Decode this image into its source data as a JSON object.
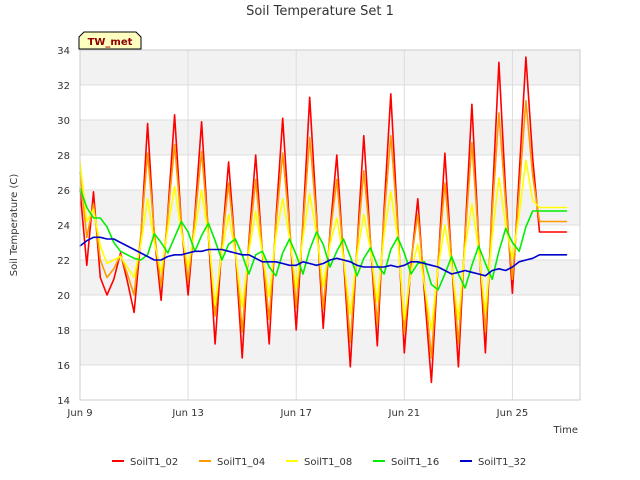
{
  "chart_data": {
    "type": "line",
    "title": "Soil Temperature Set 1",
    "xlabel": "Time",
    "ylabel": "Soil Temperature (C)",
    "site_label": "TW_met",
    "xlim": [
      9.0,
      27.5
    ],
    "ylim": [
      14,
      34
    ],
    "y_ticks": [
      14,
      16,
      18,
      20,
      22,
      24,
      26,
      28,
      30,
      32,
      34
    ],
    "x_ticks": [
      {
        "day": 9,
        "label": "Jun 9"
      },
      {
        "day": 13,
        "label": "Jun 13"
      },
      {
        "day": 17,
        "label": "Jun 17"
      },
      {
        "day": 21,
        "label": "Jun 21"
      },
      {
        "day": 25,
        "label": "Jun 25"
      }
    ],
    "grid": true,
    "background_bands": "alternating light gray",
    "legend_position": "bottom",
    "x_unit": "day of June 2-hourly",
    "series": [
      {
        "name": "SoilT1_02",
        "color": "#ff0000",
        "x": [
          9.0,
          9.25,
          9.5,
          9.75,
          10.0,
          10.25,
          10.5,
          10.75,
          11.0,
          11.25,
          11.5,
          11.75,
          12.0,
          12.25,
          12.5,
          12.75,
          13.0,
          13.25,
          13.5,
          13.75,
          14.0,
          14.25,
          14.5,
          14.75,
          15.0,
          15.25,
          15.5,
          15.75,
          16.0,
          16.25,
          16.5,
          16.75,
          17.0,
          17.25,
          17.5,
          17.75,
          18.0,
          18.25,
          18.5,
          18.75,
          19.0,
          19.25,
          19.5,
          19.75,
          20.0,
          20.25,
          20.5,
          20.75,
          21.0,
          21.25,
          21.5,
          21.75,
          22.0,
          22.25,
          22.5,
          22.75,
          23.0,
          23.25,
          23.5,
          23.75,
          24.0,
          24.25,
          24.5,
          24.75,
          25.0,
          25.25,
          25.5,
          25.75,
          26.0,
          26.25,
          26.5,
          26.75,
          27.0
        ],
        "y": [
          26.0,
          21.7,
          25.9,
          21.0,
          20.0,
          20.9,
          22.4,
          20.8,
          19.0,
          23.2,
          29.8,
          23.4,
          19.7,
          24.7,
          30.3,
          24.0,
          20.0,
          24.6,
          29.9,
          23.4,
          17.2,
          22.9,
          27.6,
          22.5,
          16.4,
          23.1,
          28.0,
          22.4,
          17.2,
          24.3,
          30.1,
          24.0,
          18.0,
          24.2,
          31.3,
          24.6,
          18.1,
          23.6,
          28.0,
          22.1,
          15.9,
          22.7,
          29.1,
          23.0,
          17.1,
          24.9,
          31.5,
          24.2,
          16.7,
          21.8,
          25.5,
          20.0,
          15.0,
          21.8,
          28.1,
          22.0,
          15.9,
          23.5,
          30.9,
          23.2,
          16.7,
          25.3,
          33.3,
          25.8,
          20.1,
          26.9,
          33.6,
          27.8,
          23.6,
          23.6,
          23.6,
          23.6,
          23.6
        ]
      },
      {
        "name": "SoilT1_04",
        "color": "#ff9900",
        "x": [
          9.0,
          9.25,
          9.5,
          9.75,
          10.0,
          10.25,
          10.5,
          10.75,
          11.0,
          11.25,
          11.5,
          11.75,
          12.0,
          12.25,
          12.5,
          12.75,
          13.0,
          13.25,
          13.5,
          13.75,
          14.0,
          14.25,
          14.5,
          14.75,
          15.0,
          15.25,
          15.5,
          15.75,
          16.0,
          16.25,
          16.5,
          16.75,
          17.0,
          17.25,
          17.5,
          17.75,
          18.0,
          18.25,
          18.5,
          18.75,
          19.0,
          19.25,
          19.5,
          19.75,
          20.0,
          20.25,
          20.5,
          20.75,
          21.0,
          21.25,
          21.5,
          21.75,
          22.0,
          22.25,
          22.5,
          22.75,
          23.0,
          23.25,
          23.5,
          23.75,
          24.0,
          24.25,
          24.5,
          24.75,
          25.0,
          25.25,
          25.5,
          25.75,
          26.0,
          26.25,
          26.5,
          26.75,
          27.0
        ],
        "y": [
          27.0,
          23.3,
          25.2,
          22.0,
          21.0,
          21.5,
          22.3,
          21.2,
          20.0,
          23.4,
          28.1,
          23.6,
          20.5,
          24.5,
          28.6,
          24.0,
          20.8,
          24.3,
          28.2,
          23.6,
          18.8,
          22.9,
          26.4,
          22.6,
          17.9,
          22.9,
          26.6,
          22.5,
          18.6,
          24.0,
          28.1,
          23.9,
          19.3,
          23.9,
          29.0,
          24.3,
          19.2,
          23.4,
          26.6,
          22.3,
          17.3,
          22.7,
          27.1,
          23.0,
          18.3,
          24.4,
          29.1,
          24.0,
          17.8,
          22.0,
          24.6,
          20.6,
          16.4,
          21.9,
          26.4,
          22.1,
          17.2,
          23.3,
          28.7,
          23.2,
          17.9,
          24.7,
          30.4,
          25.2,
          20.9,
          25.9,
          31.1,
          26.8,
          24.2,
          24.2,
          24.2,
          24.2,
          24.2
        ]
      },
      {
        "name": "SoilT1_08",
        "color": "#ffff00",
        "x": [
          9.0,
          9.25,
          9.5,
          9.75,
          10.0,
          10.25,
          10.5,
          10.75,
          11.0,
          11.25,
          11.5,
          11.75,
          12.0,
          12.25,
          12.5,
          12.75,
          13.0,
          13.25,
          13.5,
          13.75,
          14.0,
          14.25,
          14.5,
          14.75,
          15.0,
          15.25,
          15.5,
          15.75,
          16.0,
          16.25,
          16.5,
          16.75,
          17.0,
          17.25,
          17.5,
          17.75,
          18.0,
          18.25,
          18.5,
          18.75,
          19.0,
          19.25,
          19.5,
          19.75,
          20.0,
          20.25,
          20.5,
          20.75,
          21.0,
          21.25,
          21.5,
          21.75,
          22.0,
          22.25,
          22.5,
          22.75,
          23.0,
          23.25,
          23.5,
          23.75,
          24.0,
          24.25,
          24.5,
          24.75,
          25.0,
          25.25,
          25.5,
          25.75,
          26.0,
          26.25,
          26.5,
          26.75,
          27.0
        ],
        "y": [
          27.6,
          24.2,
          24.9,
          22.8,
          21.8,
          22.0,
          22.2,
          21.6,
          21.0,
          22.9,
          25.5,
          23.0,
          21.3,
          23.8,
          26.2,
          23.6,
          21.6,
          23.7,
          26.0,
          23.4,
          19.4,
          22.5,
          24.6,
          22.4,
          19.3,
          22.5,
          24.8,
          22.4,
          19.9,
          23.4,
          25.5,
          23.3,
          20.4,
          23.3,
          25.8,
          23.5,
          20.5,
          22.9,
          24.4,
          22.1,
          18.9,
          22.3,
          24.6,
          22.6,
          19.6,
          23.5,
          25.9,
          23.3,
          18.6,
          21.4,
          22.9,
          20.5,
          18.0,
          21.6,
          24.0,
          21.7,
          18.6,
          22.7,
          25.2,
          22.6,
          19.0,
          23.4,
          26.7,
          24.0,
          22.1,
          24.6,
          27.7,
          25.4,
          25.0,
          25.0,
          25.0,
          25.0,
          25.0
        ]
      },
      {
        "name": "SoilT1_16",
        "color": "#00ee00",
        "x": [
          9.0,
          9.25,
          9.5,
          9.75,
          10.0,
          10.25,
          10.5,
          10.75,
          11.0,
          11.25,
          11.5,
          11.75,
          12.0,
          12.25,
          12.5,
          12.75,
          13.0,
          13.25,
          13.5,
          13.75,
          14.0,
          14.25,
          14.5,
          14.75,
          15.0,
          15.25,
          15.5,
          15.75,
          16.0,
          16.25,
          16.5,
          16.75,
          17.0,
          17.25,
          17.5,
          17.75,
          18.0,
          18.25,
          18.5,
          18.75,
          19.0,
          19.25,
          19.5,
          19.75,
          20.0,
          20.25,
          20.5,
          20.75,
          21.0,
          21.25,
          21.5,
          21.75,
          22.0,
          22.25,
          22.5,
          22.75,
          23.0,
          23.25,
          23.5,
          23.75,
          24.0,
          24.25,
          24.5,
          24.75,
          25.0,
          25.25,
          25.5,
          25.75,
          26.0,
          26.25,
          26.5,
          26.75,
          27.0
        ],
        "y": [
          26.1,
          25.0,
          24.4,
          24.4,
          23.9,
          23.0,
          22.5,
          22.3,
          22.1,
          22.0,
          22.3,
          23.5,
          23.0,
          22.4,
          23.3,
          24.2,
          23.6,
          22.5,
          23.4,
          24.1,
          23.1,
          22.0,
          22.9,
          23.2,
          22.3,
          21.2,
          22.3,
          22.5,
          21.6,
          21.1,
          22.4,
          23.2,
          22.3,
          21.2,
          22.6,
          23.6,
          22.9,
          21.6,
          22.5,
          23.2,
          22.2,
          21.1,
          22.1,
          22.7,
          21.7,
          21.2,
          22.6,
          23.3,
          22.4,
          21.2,
          21.8,
          21.9,
          20.6,
          20.3,
          21.2,
          22.2,
          21.2,
          20.4,
          21.7,
          22.8,
          21.8,
          20.9,
          22.5,
          23.8,
          23.0,
          22.5,
          23.9,
          24.8,
          24.8,
          24.8,
          24.8,
          24.8,
          24.8
        ]
      },
      {
        "name": "SoilT1_32",
        "color": "#0000cc",
        "x": [
          9.0,
          9.25,
          9.5,
          9.75,
          10.0,
          10.25,
          10.5,
          10.75,
          11.0,
          11.25,
          11.5,
          11.75,
          12.0,
          12.25,
          12.5,
          12.75,
          13.0,
          13.25,
          13.5,
          13.75,
          14.0,
          14.25,
          14.5,
          14.75,
          15.0,
          15.25,
          15.5,
          15.75,
          16.0,
          16.25,
          16.5,
          16.75,
          17.0,
          17.25,
          17.5,
          17.75,
          18.0,
          18.25,
          18.5,
          18.75,
          19.0,
          19.25,
          19.5,
          19.75,
          20.0,
          20.25,
          20.5,
          20.75,
          21.0,
          21.25,
          21.5,
          21.75,
          22.0,
          22.25,
          22.5,
          22.75,
          23.0,
          23.25,
          23.5,
          23.75,
          24.0,
          24.25,
          24.5,
          24.75,
          25.0,
          25.25,
          25.5,
          25.75,
          26.0,
          26.25,
          26.5,
          26.75,
          27.0
        ],
        "y": [
          22.8,
          23.1,
          23.3,
          23.3,
          23.2,
          23.2,
          23.0,
          22.8,
          22.6,
          22.4,
          22.2,
          22.0,
          22.0,
          22.2,
          22.3,
          22.3,
          22.4,
          22.5,
          22.5,
          22.6,
          22.6,
          22.6,
          22.5,
          22.4,
          22.3,
          22.3,
          22.1,
          21.9,
          21.9,
          21.9,
          21.8,
          21.7,
          21.7,
          21.9,
          21.8,
          21.7,
          21.8,
          22.0,
          22.1,
          22.0,
          21.9,
          21.7,
          21.6,
          21.6,
          21.6,
          21.6,
          21.7,
          21.6,
          21.7,
          21.9,
          21.9,
          21.8,
          21.7,
          21.6,
          21.4,
          21.2,
          21.3,
          21.4,
          21.3,
          21.2,
          21.1,
          21.4,
          21.5,
          21.4,
          21.6,
          21.9,
          22.0,
          22.1,
          22.3,
          22.3,
          22.3,
          22.3,
          22.3
        ]
      }
    ]
  }
}
